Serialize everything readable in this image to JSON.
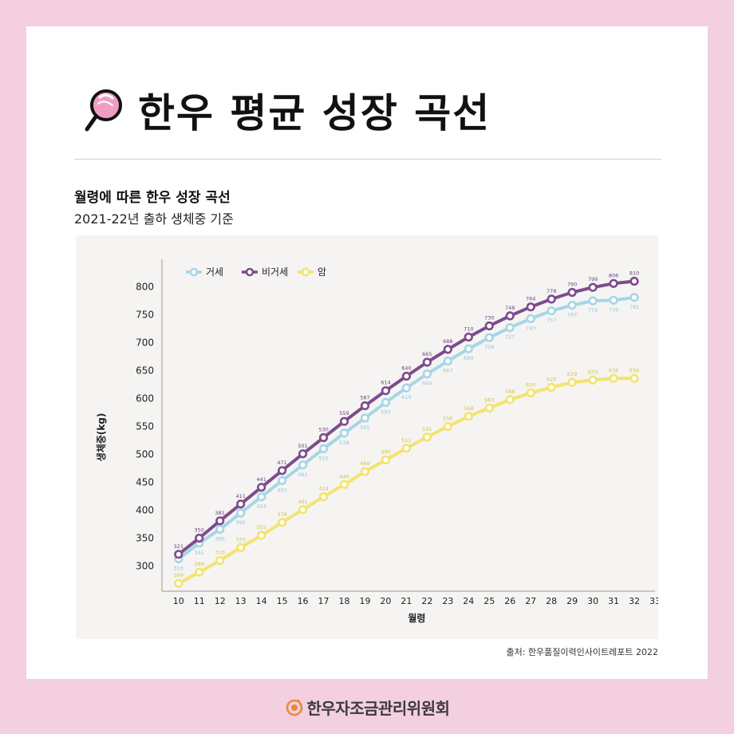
{
  "header": {
    "title": "한우 평균 성장 곡선"
  },
  "chart_section": {
    "subtitle": "월령에 따른 한우 성장 곡선",
    "subtitle2": "2021-22년 출하 생체중 기준"
  },
  "source": "출처: 한우품질이력인사이트레포트 2022",
  "footer": {
    "org": "한우자조금관리위원회"
  },
  "colors": {
    "castrated": "#a6d6e6",
    "non_castrated": "#7e4b8e",
    "female": "#f2e46e",
    "background": "#f3cfe0"
  },
  "icons": {
    "title": "magnifier-icon",
    "footer": "hanwoo-logo-icon"
  },
  "chart_data": {
    "type": "line",
    "title": "",
    "xlabel": "월령",
    "ylabel": "생체중(kg)",
    "x": [
      10,
      11,
      12,
      13,
      14,
      15,
      16,
      17,
      18,
      19,
      20,
      21,
      22,
      23,
      24,
      25,
      26,
      27,
      28,
      29,
      30,
      31,
      32
    ],
    "xticks": [
      10,
      11,
      12,
      13,
      14,
      15,
      16,
      17,
      18,
      19,
      20,
      21,
      22,
      23,
      24,
      25,
      26,
      27,
      28,
      29,
      30,
      31,
      32,
      33
    ],
    "yticks": [
      300,
      350,
      400,
      450,
      500,
      550,
      600,
      650,
      700,
      750,
      800
    ],
    "xlim": [
      9.2,
      33
    ],
    "ylim": [
      255,
      835
    ],
    "grid": false,
    "legend": "top-left",
    "series": [
      {
        "name": "거세",
        "color": "#a6d6e6",
        "values": [
          313,
          341,
          366,
          395,
          424,
          453,
          481,
          510,
          538,
          565,
          593,
          619,
          644,
          667,
          689,
          709,
          727,
          743,
          757,
          767,
          775,
          776,
          781
        ]
      },
      {
        "name": "비거세",
        "color": "#7e4b8e",
        "values": [
          321,
          350,
          381,
          411,
          441,
          471,
          501,
          530,
          559,
          587,
          614,
          640,
          665,
          688,
          710,
          730,
          748,
          764,
          778,
          790,
          799,
          806,
          810
        ]
      },
      {
        "name": "암",
        "color": "#f2e46e",
        "values": [
          269,
          289,
          310,
          333,
          355,
          378,
          401,
          424,
          446,
          469,
          490,
          511,
          531,
          550,
          568,
          583,
          598,
          610,
          620,
          629,
          633,
          636,
          636
        ]
      }
    ]
  }
}
